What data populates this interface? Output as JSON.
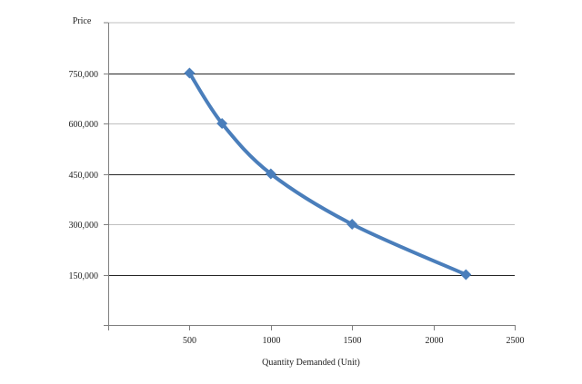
{
  "chart_data": {
    "type": "line",
    "xlabel": "Quantity Demanded (Unit)",
    "ylabel": "Price",
    "xlim": [
      0,
      2500
    ],
    "ylim": [
      0,
      900000
    ],
    "x_ticks": [
      {
        "value": 500,
        "label": "500"
      },
      {
        "value": 1000,
        "label": "1000"
      },
      {
        "value": 1500,
        "label": "1500"
      },
      {
        "value": 2000,
        "label": "2000"
      },
      {
        "value": 2500,
        "label": "2500"
      }
    ],
    "y_ticks": [
      {
        "value": 150000,
        "label": "150,000"
      },
      {
        "value": 300000,
        "label": "300,000"
      },
      {
        "value": 450000,
        "label": "450,000"
      },
      {
        "value": 600000,
        "label": "600,000"
      },
      {
        "value": 750000,
        "label": "750,000"
      }
    ],
    "grid": true,
    "legend": "none",
    "series": [
      {
        "x": [
          500,
          700,
          1000,
          1500,
          2200
        ],
        "y": [
          750000,
          600000,
          450000,
          300000,
          150000
        ]
      }
    ],
    "colors": {
      "series": "#4a7ebb",
      "grid_major": "#262626",
      "grid_minor": "#bfbfbf",
      "axis": "#7f7f7f"
    }
  }
}
